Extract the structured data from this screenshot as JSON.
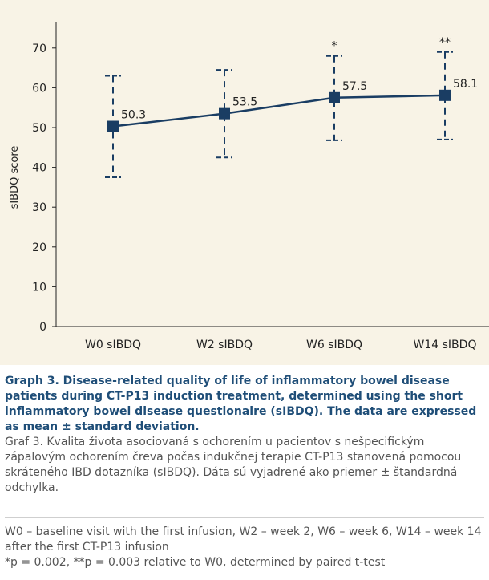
{
  "chart_data": {
    "type": "line",
    "categories": [
      "W0 sIBDQ",
      "W2 sIBDQ",
      "W6 sIBDQ",
      "W14 sIBDQ"
    ],
    "series": [
      {
        "values": [
          50.3,
          53.5,
          57.5,
          58.1
        ],
        "error_low": [
          37.5,
          42.5,
          46.8,
          47.0
        ],
        "error_high": [
          63.0,
          64.5,
          68.0,
          69.0
        ]
      }
    ],
    "data_labels": [
      "50.3",
      "53.5",
      "57.5",
      "58.1"
    ],
    "significance": [
      "",
      "",
      "*",
      "**"
    ],
    "title": "",
    "xlabel": "",
    "ylabel": "sIBDQ score",
    "ylim": [
      0,
      75
    ],
    "yticks": [
      0,
      10,
      20,
      30,
      40,
      50,
      60,
      70
    ],
    "grid": false,
    "colors": {
      "line": "#1a3d63",
      "error": "#1a3d63",
      "panel": "#f8f3e6"
    }
  },
  "caption": {
    "en": "Graph 3. Disease-related quality of life of inflammatory bowel disease patients during CT-P13 induction treatment, determined using the short inflammatory bowel disease questionaire (sIBDQ). The data are expressed as mean ± standard deviation.",
    "sk": "Graf 3. Kvalita života asociovaná s ochorením u pacientov s nešpecifickým zápalovým ochorením čreva počas indukčnej terapie CT-P13 stanovená pomocou skráteného IBD dotazníka (sIBDQ). Dáta sú vyjadrené ako priemer ± štandardná odchylka."
  },
  "notes": {
    "abbrev": "W0 – baseline visit with the first infusion, W2 – week 2, W6 – week 6, W14 – week 14 after the first CT-P13 infusion",
    "pvalues": "*p = 0.002, **p = 0.003 relative to W0, determined by paired t-test"
  }
}
